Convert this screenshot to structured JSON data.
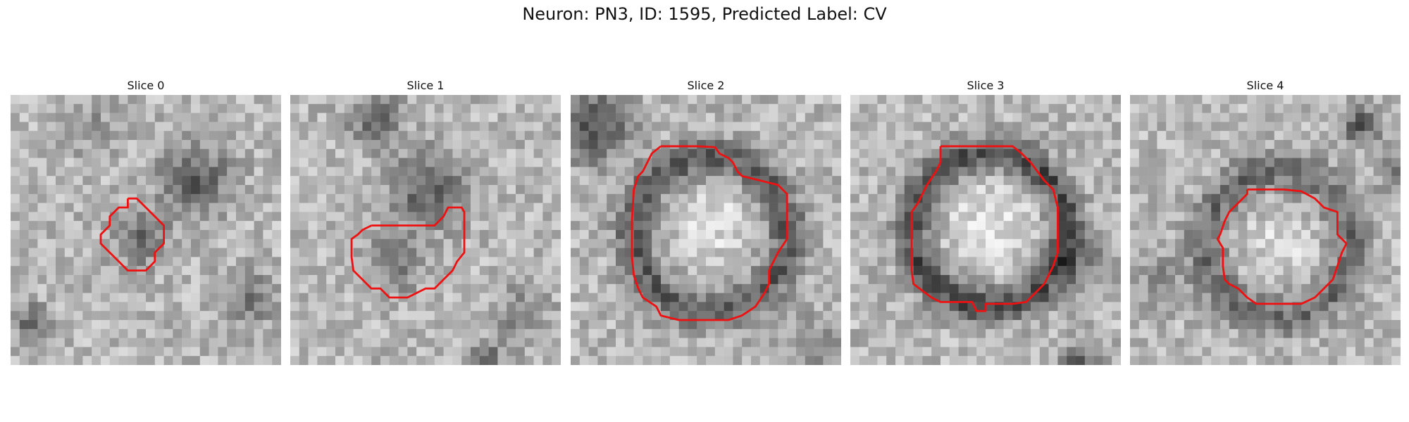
{
  "figure": {
    "title": "Neuron: PN3, ID: 1595, Predicted Label: CV"
  },
  "slices": [
    {
      "label": "Slice 0"
    },
    {
      "label": "Slice 1"
    },
    {
      "label": "Slice 2"
    },
    {
      "label": "Slice 3"
    },
    {
      "label": "Slice 4"
    }
  ],
  "colors": {
    "contour": "#ee1111",
    "background": "#ffffff"
  }
}
